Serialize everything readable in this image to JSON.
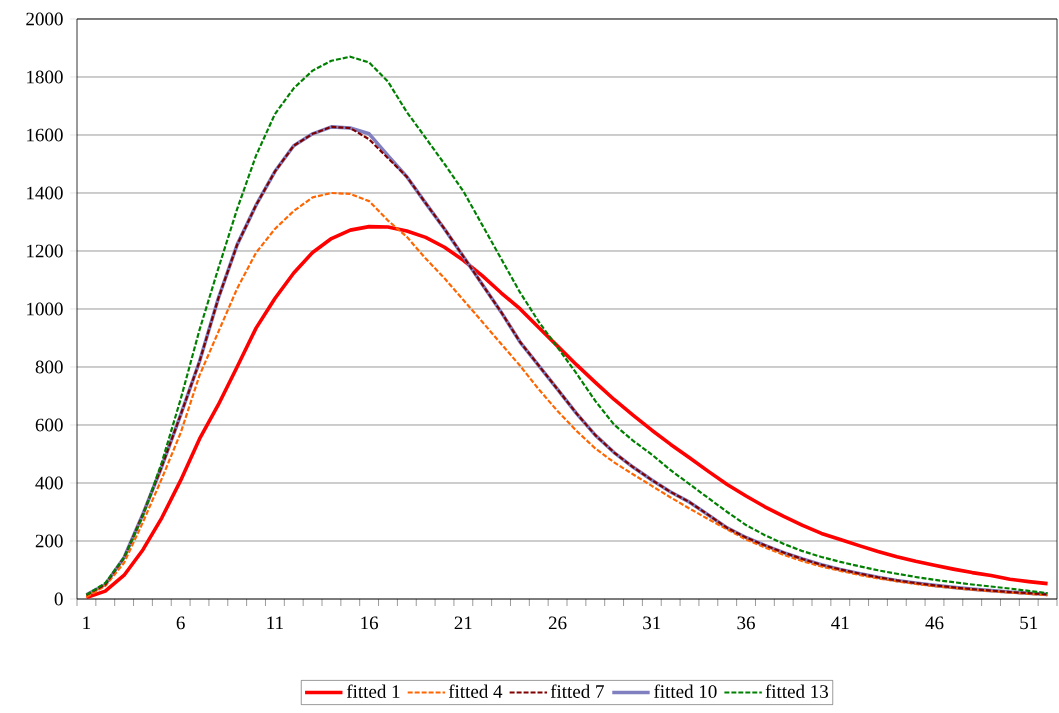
{
  "chart_data": {
    "type": "line",
    "categories": [
      "1",
      null,
      null,
      null,
      null,
      "6",
      null,
      null,
      null,
      null,
      "11",
      null,
      null,
      null,
      null,
      "16",
      null,
      null,
      null,
      null,
      "21",
      null,
      null,
      null,
      null,
      "26",
      null,
      null,
      null,
      null,
      "31",
      null,
      null,
      null,
      null,
      "36",
      null,
      null,
      null,
      null,
      "41",
      null,
      null,
      null,
      null,
      "46",
      null,
      null,
      null,
      null,
      "51",
      null
    ],
    "series": [
      {
        "name": "fitted 1",
        "color": "#ff0000",
        "line_style": "solid",
        "values": [
          5,
          27,
          82,
          170,
          280,
          409,
          552,
          670,
          801,
          934,
          1036,
          1124,
          1195,
          1243,
          1272,
          1284,
          1283,
          1269,
          1247,
          1213,
          1168,
          1115,
          1056,
          1001,
          936,
          872,
          808,
          747,
          688,
          634,
          582,
          533,
          487,
          440,
          395,
          355,
          318,
          285,
          254,
          226,
          205,
          184,
          164,
          146,
          130,
          116,
          103,
          91,
          81,
          68,
          60,
          53
        ]
      },
      {
        "name": "fitted 4",
        "color": "#ff6600",
        "line_style": "dashed",
        "values": [
          7,
          45,
          125,
          265,
          415,
          573,
          771,
          921,
          1071,
          1194,
          1276,
          1338,
          1385,
          1400,
          1397,
          1372,
          1305,
          1249,
          1174,
          1106,
          1031,
          956,
          880,
          805,
          723,
          648,
          580,
          519,
          471,
          430,
          390,
          350,
          312,
          275,
          240,
          205,
          178,
          152,
          130,
          112,
          97,
          83,
          71,
          61,
          52,
          44,
          38,
          32,
          27,
          22,
          18,
          13
        ]
      },
      {
        "name": "fitted 7",
        "color": "#800000",
        "line_style": "dashed",
        "values": [
          14,
          50,
          143,
          293,
          457,
          635,
          819,
          1037,
          1222,
          1358,
          1474,
          1563,
          1604,
          1628,
          1624,
          1585,
          1520,
          1456,
          1365,
          1276,
          1181,
          1085,
          990,
          887,
          805,
          723,
          640,
          565,
          505,
          455,
          410,
          369,
          334,
          290,
          245,
          212,
          185,
          160,
          138,
          118,
          102,
          88,
          75,
          64,
          55,
          47,
          40,
          34,
          29,
          24,
          20,
          16
        ]
      },
      {
        "name": "fitted 10",
        "color": "#8080c0",
        "line_style": "solid",
        "values": [
          14,
          50,
          143,
          293,
          457,
          635,
          819,
          1037,
          1222,
          1358,
          1474,
          1563,
          1604,
          1628,
          1624,
          1604,
          1529,
          1456,
          1365,
          1276,
          1181,
          1085,
          990,
          887,
          805,
          723,
          640,
          565,
          505,
          455,
          410,
          369,
          334,
          290,
          245,
          212,
          185,
          160,
          138,
          118,
          102,
          88,
          75,
          64,
          55,
          47,
          40,
          34,
          29,
          24,
          20,
          16
        ]
      },
      {
        "name": "fitted 13",
        "color": "#008000",
        "line_style": "dashed",
        "values": [
          14,
          55,
          143,
          287,
          471,
          689,
          928,
          1140,
          1345,
          1529,
          1672,
          1761,
          1822,
          1856,
          1870,
          1850,
          1784,
          1679,
          1590,
          1500,
          1406,
          1290,
          1174,
          1058,
          956,
          867,
          778,
          683,
          601,
          546,
          498,
          444,
          396,
          348,
          300,
          255,
          220,
          190,
          165,
          145,
          128,
          113,
          99,
          87,
          76,
          66,
          58,
          50,
          43,
          36,
          28,
          20
        ]
      }
    ],
    "ylim": [
      0,
      2000
    ],
    "yticks": [
      0,
      200,
      400,
      600,
      800,
      1000,
      1200,
      1400,
      1600,
      1800,
      2000
    ],
    "grid": "y",
    "legend": "bottom"
  }
}
